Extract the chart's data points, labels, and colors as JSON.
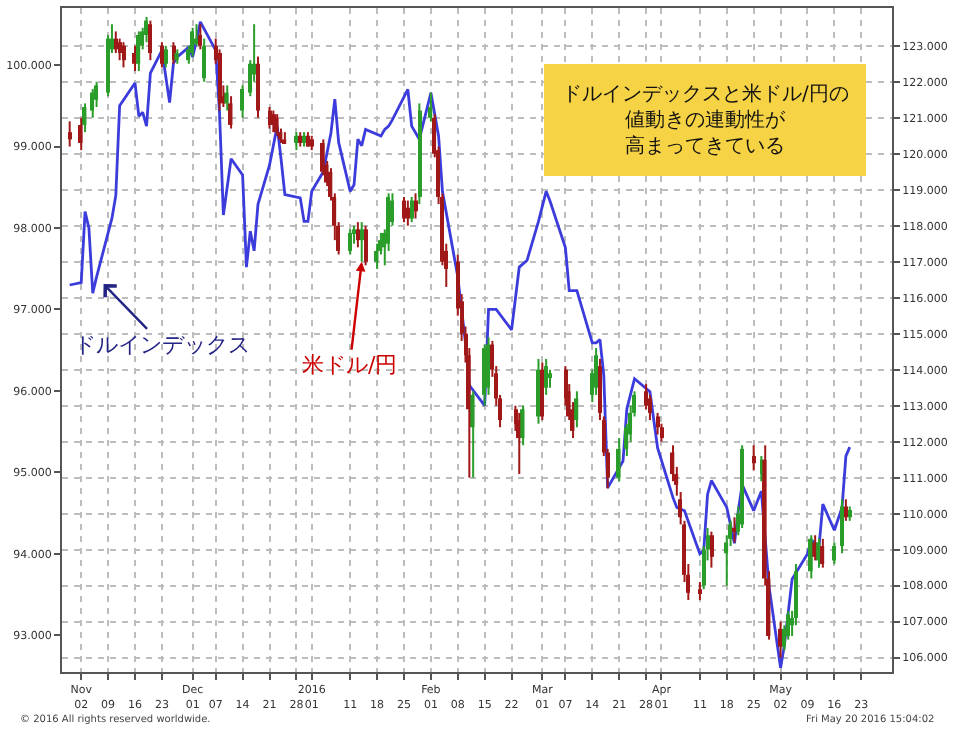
{
  "chart_data": {
    "type": "candlestick",
    "xlim": [
      "2015-10-28",
      "2016-05-31"
    ],
    "xticks": [
      {
        "value": "2015-11-02",
        "label": "Nov\n02"
      },
      {
        "value": "2015-11-09",
        "label": "09"
      },
      {
        "value": "2015-11-16",
        "label": "16"
      },
      {
        "value": "2015-11-23",
        "label": "23"
      },
      {
        "value": "2015-12-01",
        "label": "Dec\n01"
      },
      {
        "value": "2015-12-07",
        "label": "07"
      },
      {
        "value": "2015-12-14",
        "label": "14"
      },
      {
        "value": "2015-12-21",
        "label": "21"
      },
      {
        "value": "2015-12-28",
        "label": "28"
      },
      {
        "value": "2016-01-01",
        "label": "2016\n01"
      },
      {
        "value": "2016-01-11",
        "label": "11"
      },
      {
        "value": "2016-01-18",
        "label": "18"
      },
      {
        "value": "2016-01-25",
        "label": "25"
      },
      {
        "value": "2016-02-01",
        "label": "Feb\n01"
      },
      {
        "value": "2016-02-08",
        "label": "08"
      },
      {
        "value": "2016-02-15",
        "label": "15"
      },
      {
        "value": "2016-02-22",
        "label": "22"
      },
      {
        "value": "2016-03-01",
        "label": "Mar\n01"
      },
      {
        "value": "2016-03-07",
        "label": "07"
      },
      {
        "value": "2016-03-14",
        "label": "14"
      },
      {
        "value": "2016-03-21",
        "label": "21"
      },
      {
        "value": "2016-03-28",
        "label": "28"
      },
      {
        "value": "2016-04-01",
        "label": "Apr\n01"
      },
      {
        "value": "2016-04-11",
        "label": "11"
      },
      {
        "value": "2016-04-18",
        "label": "18"
      },
      {
        "value": "2016-04-25",
        "label": "25"
      },
      {
        "value": "2016-05-02",
        "label": "May\n02"
      },
      {
        "value": "2016-05-09",
        "label": "09"
      },
      {
        "value": "2016-05-16",
        "label": "16"
      },
      {
        "value": "2016-05-23",
        "label": "23"
      }
    ],
    "ylim": [
      92.55,
      100.7
    ],
    "yticks": [
      {
        "value": 93,
        "label": "93.000"
      },
      {
        "value": 94,
        "label": "94.000"
      },
      {
        "value": 95,
        "label": "95.000"
      },
      {
        "value": 96,
        "label": "96.000"
      },
      {
        "value": 97,
        "label": "97.000"
      },
      {
        "value": 98,
        "label": "98.000"
      },
      {
        "value": 99,
        "label": "99.000"
      },
      {
        "value": 100,
        "label": "100.000"
      }
    ],
    "y2lim": [
      105.6,
      124.05
    ],
    "y2ticks": [
      {
        "value": 106,
        "label": "106.000"
      },
      {
        "value": 107,
        "label": "107.000"
      },
      {
        "value": 108,
        "label": "108.000"
      },
      {
        "value": 109,
        "label": "109.000"
      },
      {
        "value": 110,
        "label": "110.000"
      },
      {
        "value": 111,
        "label": "111.000"
      },
      {
        "value": 112,
        "label": "112.000"
      },
      {
        "value": 113,
        "label": "113.000"
      },
      {
        "value": 114,
        "label": "114.000"
      },
      {
        "value": 115,
        "label": "115.000"
      },
      {
        "value": 116,
        "label": "116.000"
      },
      {
        "value": 117,
        "label": "117.000"
      },
      {
        "value": 118,
        "label": "118.000"
      },
      {
        "value": 119,
        "label": "119.000"
      },
      {
        "value": 120,
        "label": "120.000"
      },
      {
        "value": 121,
        "label": "121.000"
      },
      {
        "value": 122,
        "label": "122.000"
      },
      {
        "value": 123,
        "label": "123.000"
      }
    ],
    "grid": true,
    "annotations": [
      "ドルインデックスと米ドル/円の値動きの連動性が高まってきている",
      "© 2016 All rights reserved worldwide.",
      "Fri May 20 2016 15:04:02"
    ],
    "series": [
      {
        "type": "line",
        "name": "ドルインデックス",
        "color": "#3c3cdc",
        "x": [
          "2015-10-30",
          "2015-11-02",
          "2015-11-03",
          "2015-11-04",
          "2015-11-05",
          "2015-11-06",
          "2015-11-10",
          "2015-11-11",
          "2015-11-12",
          "2015-11-16",
          "2015-11-17",
          "2015-11-18",
          "2015-11-19",
          "2015-11-20",
          "2015-11-23",
          "2015-11-25",
          "2015-11-26",
          "2015-11-27",
          "2015-11-30",
          "2015-12-01",
          "2015-12-02",
          "2015-12-03",
          "2015-12-07",
          "2015-12-08",
          "2015-12-09",
          "2015-12-11",
          "2015-12-14",
          "2015-12-15",
          "2015-12-16",
          "2015-12-17",
          "2015-12-18",
          "2015-12-21",
          "2015-12-23",
          "2015-12-24",
          "2015-12-25",
          "2015-12-29",
          "2015-12-30",
          "2015-12-31",
          "2016-01-01",
          "2016-01-04",
          "2016-01-06",
          "2016-01-07",
          "2016-01-08",
          "2016-01-11",
          "2016-01-12",
          "2016-01-13",
          "2016-01-14",
          "2016-01-15",
          "2016-01-19",
          "2016-01-20",
          "2016-01-21",
          "2016-01-22",
          "2016-01-26",
          "2016-01-27",
          "2016-01-29",
          "2016-02-01",
          "2016-02-03",
          "2016-02-04",
          "2016-02-08",
          "2016-02-09",
          "2016-02-10",
          "2016-02-11",
          "2016-02-15",
          "2016-02-16",
          "2016-02-18",
          "2016-02-22",
          "2016-02-24",
          "2016-02-26",
          "2016-02-29",
          "2016-03-02",
          "2016-03-03",
          "2016-03-07",
          "2016-03-08",
          "2016-03-10",
          "2016-03-14",
          "2016-03-15",
          "2016-03-16",
          "2016-03-17",
          "2016-03-18",
          "2016-03-22",
          "2016-03-23",
          "2016-03-25",
          "2016-03-29",
          "2016-03-31",
          "2016-04-04",
          "2016-04-05",
          "2016-04-07",
          "2016-04-11",
          "2016-04-12",
          "2016-04-13",
          "2016-04-14",
          "2016-04-18",
          "2016-04-20",
          "2016-04-21",
          "2016-04-22",
          "2016-04-25",
          "2016-04-27",
          "2016-04-29",
          "2016-05-02",
          "2016-05-03",
          "2016-05-05",
          "2016-05-09",
          "2016-05-10",
          "2016-05-12",
          "2016-05-13",
          "2016-05-16",
          "2016-05-18",
          "2016-05-19",
          "2016-05-20"
        ],
        "values": [
          97.3,
          97.33,
          98.2,
          98.0,
          97.2,
          97.4,
          98.12,
          98.4,
          99.5,
          99.78,
          99.37,
          99.42,
          99.25,
          99.9,
          100.18,
          99.54,
          100.02,
          100.1,
          100.22,
          100.1,
          100.3,
          100.53,
          100.18,
          99.41,
          98.16,
          98.85,
          98.65,
          97.52,
          97.96,
          97.72,
          98.29,
          98.77,
          99.25,
          98.85,
          98.41,
          98.37,
          98.08,
          98.08,
          98.45,
          98.69,
          99.17,
          99.58,
          99.05,
          98.45,
          98.53,
          99.09,
          99.01,
          99.21,
          99.13,
          99.21,
          99.25,
          99.33,
          99.7,
          99.25,
          99.09,
          99.66,
          99.13,
          98.45,
          97.4,
          null,
          96.59,
          96.07,
          95.82,
          97.0,
          97.0,
          96.75,
          97.52,
          97.6,
          98.08,
          98.45,
          98.33,
          97.76,
          97.23,
          97.23,
          96.59,
          96.59,
          96.63,
          96.19,
          94.81,
          95.14,
          95.78,
          96.15,
          95.99,
          95.3,
          94.69,
          94.57,
          94.53,
          94.0,
          94.04,
          94.73,
          94.9,
          94.57,
          94.13,
          94.53,
          94.85,
          94.53,
          94.77,
          93.6,
          92.6,
          92.88,
          93.69,
          94.0,
          94.17,
          94.09,
          94.61,
          94.29,
          94.57,
          95.2,
          95.31
        ]
      },
      {
        "name": "米ドル/円",
        "axis": "y2",
        "color": "#cc0000",
        "colors": [
          "#a01818",
          "#a01818",
          "#2a9d2a",
          "#2a9d2a",
          "#2a9d2a",
          "#2a9d2a",
          "#2a9d2a",
          "#a01818",
          "#a01818",
          "#a01818",
          "#a01818",
          "#2a9d2a",
          "#2a9d2a",
          "#2a9d2a",
          "#a01818",
          "#a01818",
          "#2a9d2a",
          "#a01818",
          "#2a9d2a",
          "#2a9d2a",
          "#2a9d2a",
          "#2a9d2a",
          "#a01818",
          "#2a9d2a",
          "#a01818",
          "#a01818",
          "#a01818",
          "#2a9d2a",
          "#a01818",
          "#2a9d2a",
          "#2a9d2a",
          "#2a9d2a",
          "#a01818",
          "#a01818",
          "#a01818",
          "#a01818",
          "#a01818",
          "#a01818",
          "#2a9d2a",
          "#a01818",
          "#2a9d2a",
          "#a01818",
          "#a01818",
          "#a01818",
          "#a01818",
          "#a01818",
          "#a01818",
          "#a01818",
          "#2a9d2a",
          "#2a9d2a",
          "#a01818",
          "#2a9d2a",
          "#a01818",
          "#2a9d2a",
          "#2a9d2a",
          "#2a9d2a",
          "#2a9d2a",
          "#2a9d2a",
          "#a01818",
          "#a01818",
          "#2a9d2a",
          "#a01818",
          "#2a9d2a",
          "#2a9d2a",
          "#a01818",
          "#a01818",
          "#a01818",
          "#a01818",
          "#a01818",
          "#a01818",
          "#a01818",
          "#a01818",
          "#2a9d2a",
          "#2a9d2a",
          "#2a9d2a",
          "#a01818",
          "#a01818",
          "#a01818",
          "#a01818",
          "#a01818",
          "#2a9d2a",
          "#2a9d2a",
          "#a01818",
          "#2a9d2a",
          "#2a9d2a",
          "#a01818",
          "#a01818",
          "#a01818",
          "#2a9d2a",
          "#2a9d2a",
          "#2a9d2a",
          "#a01818",
          "#a01818",
          "#a01818",
          "#2a9d2a",
          "#2a9d2a",
          "#2a9d2a",
          "#2a9d2a",
          "#a01818",
          "#a01818",
          "#a01818",
          "#a01818",
          "#a01818",
          "#a01818",
          "#a01818",
          "#a01818",
          "#a01818",
          "#a01818",
          "#2a9d2a",
          "#2a9d2a",
          "#a01818",
          "#2a9d2a",
          "#2a9d2a",
          "#a01818",
          "#2a9d2a",
          "#2a9d2a",
          "#a01818",
          "#2a9d2a",
          "#a01818",
          "#a01818",
          "#a01818",
          "#2a9d2a",
          "#2a9d2a",
          "#2a9d2a",
          "#2a9d2a",
          "#2a9d2a",
          "#a01818",
          "#2a9d2a",
          "#a01818",
          "#2a9d2a",
          "#2a9d2a",
          "#a01818",
          "#2a9d2a"
        ],
        "x": [
          "2015-10-30",
          "2015-11-02",
          "2015-11-03",
          "2015-11-05",
          "2015-11-06",
          "2015-11-09",
          "2015-11-10",
          "2015-11-11",
          "2015-11-12",
          "2015-11-13",
          "2015-11-16",
          "2015-11-17",
          "2015-11-18",
          "2015-11-19",
          "2015-11-20",
          "2015-11-23",
          "2015-11-24",
          "2015-11-26",
          "2015-11-27",
          "2015-11-30",
          "2015-12-01",
          "2015-12-02",
          "2015-12-03",
          "2015-12-04",
          "2015-12-07",
          "2015-12-08",
          "2015-12-09",
          "2015-12-10",
          "2015-12-11",
          "2015-12-14",
          "2015-12-16",
          "2015-12-17",
          "2015-12-18",
          "2015-12-21",
          "2015-12-22",
          "2015-12-23",
          "2015-12-24",
          "2015-12-25",
          "2015-12-28",
          "2015-12-29",
          "2015-12-30",
          "2015-12-31",
          "2016-01-01",
          "2016-01-04",
          "2016-01-05",
          "2016-01-06",
          "2016-01-07",
          "2016-01-08",
          "2016-01-11",
          "2016-01-12",
          "2016-01-13",
          "2016-01-14",
          "2016-01-15",
          "2016-01-18",
          "2016-01-19",
          "2016-01-20",
          "2016-01-21",
          "2016-01-22",
          "2016-01-25",
          "2016-01-26",
          "2016-01-27",
          "2016-01-28",
          "2016-01-29",
          "2016-02-01",
          "2016-02-02",
          "2016-02-03",
          "2016-02-04",
          "2016-02-05",
          "2016-02-08",
          "2016-02-09",
          "2016-02-10",
          "2016-02-11",
          "2016-02-12",
          "2016-02-15",
          "2016-02-16",
          "2016-02-17",
          "2016-02-18",
          "2016-02-19",
          "2016-02-23",
          "2016-02-24",
          "2016-02-25",
          "2016-02-29",
          "2016-03-01",
          "2016-03-02",
          "2016-03-03",
          "2016-03-07",
          "2016-03-08",
          "2016-03-09",
          "2016-03-10",
          "2016-03-14",
          "2016-03-15",
          "2016-03-16",
          "2016-03-17",
          "2016-03-18",
          "2016-03-21",
          "2016-03-23",
          "2016-03-24",
          "2016-03-25",
          "2016-03-28",
          "2016-03-29",
          "2016-03-31",
          "2016-04-01",
          "2016-04-04",
          "2016-04-05",
          "2016-04-06",
          "2016-04-07",
          "2016-04-08",
          "2016-04-11",
          "2016-04-12",
          "2016-04-13",
          "2016-04-14",
          "2016-04-18",
          "2016-04-19",
          "2016-04-20",
          "2016-04-21",
          "2016-04-22",
          "2016-04-25",
          "2016-04-27",
          "2016-04-28",
          "2016-04-29",
          "2016-05-02",
          "2016-05-03",
          "2016-05-04",
          "2016-05-05",
          "2016-05-06",
          "2016-05-10",
          "2016-05-11",
          "2016-05-12",
          "2016-05-13",
          "2016-05-16",
          "2016-05-18",
          "2016-05-19",
          "2016-05-20"
        ],
        "ohlc": [
          [
            120.6,
            120.9,
            120.2,
            120.4
          ],
          [
            120.8,
            121.0,
            120.1,
            120.3
          ],
          [
            120.8,
            121.4,
            120.6,
            121.3
          ],
          [
            121.2,
            121.8,
            121.0,
            121.7
          ],
          [
            121.5,
            122.0,
            121.3,
            121.9
          ],
          [
            121.7,
            123.3,
            121.6,
            123.2
          ],
          [
            122.9,
            123.6,
            122.8,
            123.2
          ],
          [
            123.2,
            123.4,
            122.8,
            122.9
          ],
          [
            123.1,
            123.2,
            122.6,
            122.8
          ],
          [
            123.0,
            123.1,
            122.4,
            122.6
          ],
          [
            122.8,
            123.0,
            122.3,
            122.5
          ],
          [
            122.5,
            123.4,
            122.3,
            123.3
          ],
          [
            123.0,
            123.5,
            122.9,
            123.4
          ],
          [
            123.3,
            123.8,
            123.1,
            123.7
          ],
          [
            123.6,
            123.7,
            122.6,
            122.8
          ],
          [
            123.0,
            123.1,
            122.4,
            122.5
          ],
          [
            122.5,
            123.0,
            122.4,
            122.9
          ],
          [
            123.0,
            123.1,
            122.5,
            122.6
          ],
          [
            122.6,
            122.9,
            122.5,
            122.8
          ],
          [
            122.6,
            123.0,
            122.5,
            122.9
          ],
          [
            122.8,
            123.5,
            122.7,
            123.4
          ],
          [
            123.1,
            123.6,
            123.0,
            123.2
          ],
          [
            123.3,
            123.6,
            122.9,
            123.0
          ],
          [
            122.1,
            123.2,
            122.0,
            123.0
          ],
          [
            123.0,
            123.2,
            122.5,
            122.6
          ],
          [
            122.8,
            122.9,
            121.2,
            121.4
          ],
          [
            121.6,
            121.9,
            121.3,
            121.4
          ],
          [
            121.4,
            121.9,
            121.2,
            121.7
          ],
          [
            121.4,
            121.6,
            120.7,
            120.8
          ],
          [
            121.2,
            121.9,
            121.0,
            121.8
          ],
          [
            121.7,
            122.6,
            121.6,
            122.5
          ],
          [
            122.2,
            123.6,
            122.0,
            122.5
          ],
          [
            122.5,
            122.7,
            121.0,
            121.2
          ],
          [
            121.2,
            121.3,
            120.7,
            120.8
          ],
          [
            121.1,
            121.2,
            120.6,
            120.8
          ],
          [
            121.0,
            121.1,
            120.5,
            120.6
          ],
          [
            120.6,
            120.7,
            120.3,
            120.4
          ],
          [
            120.4,
            120.6,
            120.3,
            120.3
          ],
          [
            120.3,
            120.6,
            120.1,
            120.5
          ],
          [
            120.5,
            120.6,
            120.2,
            120.3
          ],
          [
            120.3,
            120.6,
            120.2,
            120.5
          ],
          [
            120.5,
            120.6,
            120.2,
            120.2
          ],
          [
            120.4,
            120.5,
            120.1,
            120.2
          ],
          [
            120.3,
            120.4,
            119.4,
            119.5
          ],
          [
            119.7,
            119.8,
            119.1,
            119.2
          ],
          [
            119.5,
            119.6,
            118.7,
            118.8
          ],
          [
            118.8,
            118.9,
            117.6,
            118.0
          ],
          [
            118.0,
            118.1,
            117.2,
            117.3
          ],
          [
            117.3,
            117.9,
            117.2,
            117.8
          ],
          [
            117.8,
            118.0,
            117.5,
            117.9
          ],
          [
            117.9,
            118.1,
            117.4,
            117.6
          ],
          [
            117.6,
            118.1,
            117.0,
            117.9
          ],
          [
            117.9,
            118.0,
            116.9,
            117.0
          ],
          [
            117.0,
            117.5,
            116.8,
            117.3
          ],
          [
            117.3,
            117.8,
            117.2,
            117.6
          ],
          [
            117.4,
            117.9,
            116.9,
            117.8
          ],
          [
            117.5,
            118.9,
            117.3,
            118.8
          ],
          [
            118.1,
            118.9,
            118.0,
            118.7
          ],
          [
            118.7,
            118.8,
            118.1,
            118.2
          ],
          [
            118.5,
            118.7,
            118.0,
            118.2
          ],
          [
            118.2,
            118.8,
            118.1,
            118.7
          ],
          [
            118.7,
            118.9,
            118.2,
            118.4
          ],
          [
            118.8,
            121.4,
            118.6,
            121.2
          ],
          [
            121.0,
            121.7,
            120.9,
            121.3
          ],
          [
            121.0,
            121.1,
            119.9,
            120.0
          ],
          [
            120.1,
            120.2,
            118.6,
            118.8
          ],
          [
            118.8,
            118.9,
            116.9,
            117.0
          ],
          [
            117.3,
            117.5,
            116.3,
            116.8
          ],
          [
            117.0,
            117.2,
            115.5,
            115.7
          ],
          [
            115.9,
            116.1,
            114.8,
            115.0
          ],
          [
            115.0,
            115.2,
            114.2,
            114.4
          ],
          [
            114.4,
            114.6,
            111.0,
            112.9
          ],
          [
            112.4,
            113.4,
            111.0,
            113.3
          ],
          [
            113.3,
            114.7,
            113.0,
            114.6
          ],
          [
            113.5,
            114.9,
            113.3,
            114.7
          ],
          [
            114.7,
            114.8,
            113.8,
            114.0
          ],
          [
            113.9,
            114.1,
            113.0,
            113.2
          ],
          [
            113.2,
            113.3,
            112.4,
            112.6
          ],
          [
            112.9,
            113.0,
            112.3,
            112.5
          ],
          [
            112.6,
            112.8,
            111.1,
            112.1
          ],
          [
            112.1,
            113.0,
            111.9,
            112.9
          ],
          [
            112.7,
            114.3,
            112.5,
            114.0
          ],
          [
            114.0,
            114.2,
            112.6,
            112.7
          ],
          [
            113.5,
            114.3,
            113.3,
            114.1
          ],
          [
            113.8,
            114.0,
            113.5,
            113.9
          ],
          [
            114.0,
            114.1,
            113.0,
            113.2
          ],
          [
            113.4,
            113.6,
            112.6,
            112.7
          ],
          [
            112.9,
            113.1,
            112.1,
            112.3
          ],
          [
            112.6,
            113.4,
            112.4,
            113.2
          ],
          [
            113.3,
            114.0,
            113.1,
            113.9
          ],
          [
            113.5,
            114.6,
            113.3,
            114.4
          ],
          [
            114.1,
            114.3,
            112.6,
            112.8
          ],
          [
            112.6,
            112.7,
            111.6,
            111.7
          ],
          [
            111.7,
            111.8,
            110.7,
            111.0
          ],
          [
            111.0,
            112.1,
            110.9,
            111.8
          ],
          [
            111.8,
            112.5,
            111.6,
            112.4
          ],
          [
            112.2,
            113.0,
            112.0,
            112.8
          ],
          [
            112.8,
            113.4,
            112.7,
            113.3
          ],
          [
            113.4,
            113.6,
            112.9,
            113.0
          ],
          [
            113.2,
            113.3,
            112.6,
            112.8
          ],
          [
            112.7,
            112.8,
            112.2,
            112.4
          ],
          [
            112.4,
            112.5,
            112.0,
            112.1
          ],
          [
            111.7,
            111.9,
            110.9,
            111.1
          ],
          [
            111.1,
            111.3,
            110.5,
            110.8
          ],
          [
            110.4,
            110.6,
            109.7,
            109.9
          ],
          [
            109.7,
            109.8,
            108.1,
            108.3
          ],
          [
            108.3,
            108.6,
            107.6,
            107.8
          ],
          [
            107.9,
            108.1,
            107.6,
            107.8
          ],
          [
            108.0,
            109.1,
            107.9,
            109.0
          ],
          [
            109.0,
            109.6,
            108.7,
            109.4
          ],
          [
            109.4,
            109.5,
            108.5,
            108.8
          ],
          [
            108.9,
            109.4,
            108.0,
            109.2
          ],
          [
            109.3,
            109.8,
            109.1,
            109.7
          ],
          [
            109.6,
            109.9,
            109.2,
            109.5
          ],
          [
            109.5,
            110.2,
            109.4,
            110.0
          ],
          [
            109.7,
            111.9,
            109.6,
            111.8
          ],
          [
            111.6,
            111.9,
            111.2,
            111.4
          ],
          [
            111.1,
            111.6,
            110.9,
            111.5
          ],
          [
            111.5,
            111.9,
            108.0,
            108.2
          ],
          [
            108.2,
            108.4,
            106.5,
            106.6
          ],
          [
            106.8,
            107.0,
            106.0,
            106.3
          ],
          [
            106.3,
            106.9,
            106.2,
            106.8
          ],
          [
            106.6,
            107.3,
            106.5,
            107.2
          ],
          [
            106.9,
            107.3,
            106.6,
            107.1
          ],
          [
            107.1,
            108.6,
            106.9,
            108.4
          ],
          [
            108.4,
            109.4,
            108.2,
            109.3
          ],
          [
            109.2,
            109.4,
            108.7,
            108.8
          ],
          [
            108.7,
            109.3,
            108.5,
            109.2
          ],
          [
            109.1,
            109.3,
            108.5,
            108.6
          ],
          [
            108.7,
            109.2,
            108.6,
            109.1
          ],
          [
            109.1,
            110.4,
            108.9,
            110.2
          ],
          [
            110.2,
            110.4,
            109.8,
            109.9
          ],
          [
            109.9,
            110.2,
            109.8,
            110.1
          ]
        ]
      }
    ]
  }
}
